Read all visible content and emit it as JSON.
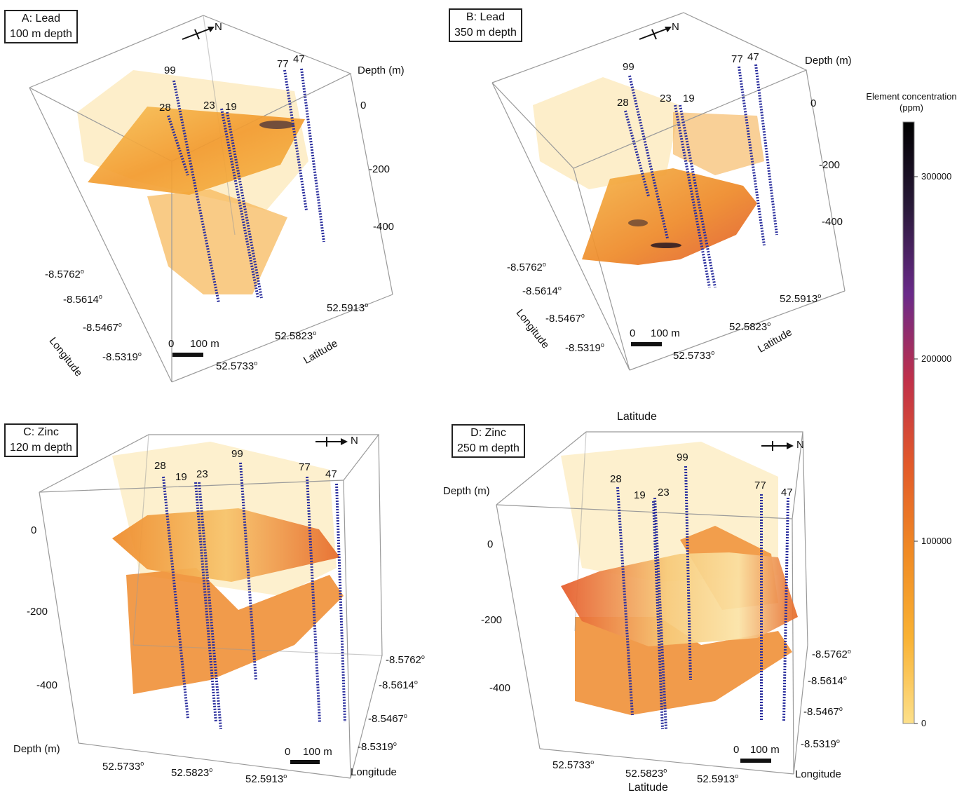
{
  "chart_data": [
    {
      "type": "volume-3d",
      "panel": "A",
      "title_line1": "A: Lead",
      "title_line2": "100 m depth",
      "axes": {
        "depth_label": "Depth (m)",
        "depth_ticks": [
          "0",
          "-200",
          "-400"
        ],
        "longitude_label": "Longitude",
        "longitude_ticks": [
          "-8.5762",
          "-8.5614",
          "-8.5467",
          "-8.5319"
        ],
        "latitude_label": "Latitude",
        "latitude_ticks": [
          "52.5733",
          "52.5823",
          "52.5913"
        ]
      },
      "wells": [
        "99",
        "28",
        "23",
        "19",
        "77",
        "47"
      ],
      "scale_bar": {
        "zero": "0",
        "label": "100 m"
      },
      "north": "N"
    },
    {
      "type": "volume-3d",
      "panel": "B",
      "title_line1": "B: Lead",
      "title_line2": "350 m depth",
      "axes": {
        "depth_label": "Depth (m)",
        "depth_ticks": [
          "0",
          "-200",
          "-400"
        ],
        "longitude_label": "Longitude",
        "longitude_ticks": [
          "-8.5762",
          "-8.5614",
          "-8.5467",
          "-8.5319"
        ],
        "latitude_label": "Latitude",
        "latitude_ticks": [
          "52.5733",
          "52.5823",
          "52.5913"
        ]
      },
      "wells": [
        "99",
        "28",
        "23",
        "19",
        "77",
        "47"
      ],
      "scale_bar": {
        "zero": "0",
        "label": "100 m"
      },
      "north": "N"
    },
    {
      "type": "volume-3d",
      "panel": "C",
      "title_line1": "C: Zinc",
      "title_line2": "120 m depth",
      "axes": {
        "depth_label": "Depth (m)",
        "depth_ticks": [
          "0",
          "-200",
          "-400"
        ],
        "longitude_label": "Longitude",
        "longitude_ticks": [
          "-8.5762",
          "-8.5614",
          "-8.5467",
          "-8.5319"
        ],
        "latitude_ticks": [
          "52.5733",
          "52.5823",
          "52.5913"
        ]
      },
      "wells": [
        "28",
        "19",
        "23",
        "99",
        "77",
        "47"
      ],
      "scale_bar": {
        "zero": "0",
        "label": "100 m"
      },
      "north": "N"
    },
    {
      "type": "volume-3d",
      "panel": "D",
      "title_line1": "D: Zinc",
      "title_line2": "250 m depth",
      "axes": {
        "depth_label": "Depth (m)",
        "depth_ticks": [
          "0",
          "-200",
          "-400"
        ],
        "longitude_label": "Longitude",
        "longitude_ticks": [
          "-8.5762",
          "-8.5614",
          "-8.5467",
          "-8.5319"
        ],
        "latitude_label": "Latitude",
        "latitude_top_label": "Latitude",
        "latitude_ticks": [
          "52.5733",
          "52.5823",
          "52.5913"
        ]
      },
      "wells": [
        "28",
        "19",
        "23",
        "99",
        "77",
        "47"
      ],
      "scale_bar": {
        "zero": "0",
        "label": "100 m"
      },
      "north": "N"
    }
  ],
  "colorbar": {
    "title_line1": "Element concentration",
    "title_line2": "(ppm)",
    "ticks": [
      "300000",
      "200000",
      "100000",
      "0"
    ],
    "tick_values": [
      300000,
      200000,
      100000,
      0
    ],
    "range": [
      0,
      330000
    ],
    "colors": [
      "#fde08a",
      "#f9b233",
      "#f08a24",
      "#e25a2a",
      "#c0304a",
      "#6a2a8a",
      "#2a1a3a",
      "#000000"
    ]
  },
  "colors": {
    "well": "#2b2f9e",
    "plane": "#f3a23a",
    "haze": "#fbe3a6",
    "box": "#9a9a9a"
  }
}
